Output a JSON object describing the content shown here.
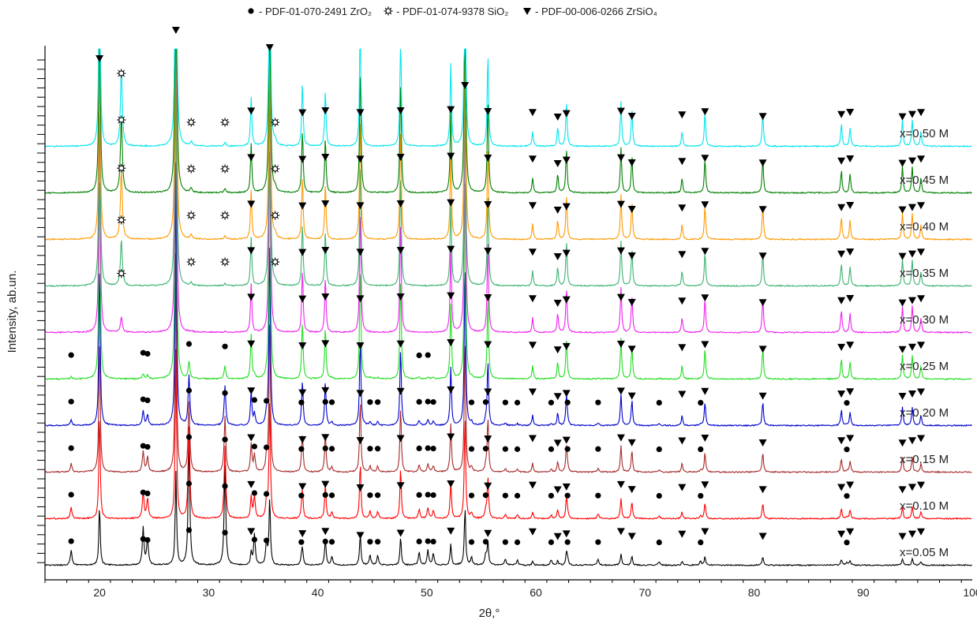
{
  "chart_data": {
    "type": "line",
    "title": "",
    "xlabel": "2θ,°",
    "ylabel": "Intensity, ab.un.",
    "xlim": [
      15,
      100
    ],
    "x_ticks": [
      "20",
      "30",
      "40",
      "50",
      "60",
      "70",
      "80",
      "90",
      "100"
    ],
    "grid": false,
    "legend": {
      "placement": "top-center",
      "entries": [
        {
          "symbol": "circle",
          "label": "- PDF-01-070-2491 ZrO₂"
        },
        {
          "symbol": "star",
          "label": "- PDF-01-074-9378 SiO₂"
        },
        {
          "symbol": "triangle-down",
          "label": "- PDF-00-006-0266 ZrSiO₄"
        }
      ]
    },
    "phase_peaks": {
      "zirconia_monoclinic": [
        17.4,
        24.0,
        24.4,
        28.2,
        31.5,
        34.2,
        35.3,
        38.5,
        40.7,
        41.3,
        44.8,
        45.5,
        49.3,
        50.1,
        50.6,
        54.1,
        55.4,
        57.2,
        58.3,
        61.4,
        62.9,
        65.7,
        71.3,
        75.1,
        88.5
      ],
      "quartz": [
        22.0,
        28.4,
        31.5,
        36.1
      ],
      "zircon": [
        20.0,
        27.0,
        33.9,
        35.6,
        38.6,
        40.7,
        43.9,
        47.6,
        52.2,
        53.5,
        55.6,
        59.7,
        62.0,
        62.8,
        67.8,
        68.8,
        73.4,
        75.5,
        80.8,
        88.0,
        88.8,
        93.6,
        94.5,
        95.3
      ]
    },
    "series": [
      {
        "name": "x=0.05 M",
        "color": "#000000",
        "composition": {
          "zirconia": 0.75,
          "zircon": 0.25,
          "quartz": 0.0
        }
      },
      {
        "name": "x=0.10 M",
        "color": "#ff0000",
        "composition": {
          "zirconia": 0.55,
          "zircon": 0.45,
          "quartz": 0.0
        }
      },
      {
        "name": "x=0.15 M",
        "color": "#a52a2a",
        "composition": {
          "zirconia": 0.42,
          "zircon": 0.58,
          "quartz": 0.0
        }
      },
      {
        "name": "x=0.20 M",
        "color": "#0000cc",
        "composition": {
          "zirconia": 0.3,
          "zircon": 0.7,
          "quartz": 0.0
        }
      },
      {
        "name": "x=0.25 M",
        "color": "#22dd22",
        "composition": {
          "zirconia": 0.1,
          "zircon": 0.9,
          "quartz": 0.0
        }
      },
      {
        "name": "x=0.30 M",
        "color": "#ee22ee",
        "composition": {
          "zirconia": 0.0,
          "zircon": 1.0,
          "quartz": 0.2
        }
      },
      {
        "name": "x=0.35 M",
        "color": "#3cb371",
        "composition": {
          "zirconia": 0.0,
          "zircon": 1.0,
          "quartz": 0.6
        }
      },
      {
        "name": "x=0.40 M",
        "color": "#ff9900",
        "composition": {
          "zirconia": 0.0,
          "zircon": 1.0,
          "quartz": 0.9
        }
      },
      {
        "name": "x=0.45 M",
        "color": "#008000",
        "composition": {
          "zirconia": 0.0,
          "zircon": 1.0,
          "quartz": 1.0
        }
      },
      {
        "name": "x=0.50 M",
        "color": "#00e5ee",
        "composition": {
          "zirconia": 0.0,
          "zircon": 1.0,
          "quartz": 1.0
        }
      }
    ]
  }
}
